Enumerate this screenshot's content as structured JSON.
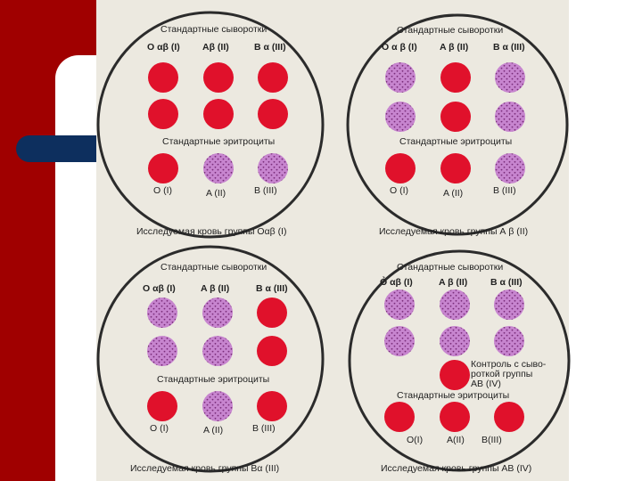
{
  "colors": {
    "agglutinated": "#c785cf",
    "agglutinated_dots": "#7a2d7a",
    "clear": "#e0112b",
    "slide_border": "#2b2b2b",
    "panel_bg": "#ece9e0",
    "accent_red": "#a00000",
    "accent_blue": "#0d2f5e"
  },
  "quadrants": [
    {
      "id": "q1",
      "sera_title": "Стандартные сыворотки",
      "sera_labels": [
        "О αβ (I)",
        "Aβ (II)",
        "B α (III)"
      ],
      "rows": [
        [
          "clear",
          "clear",
          "clear"
        ],
        [
          "clear",
          "clear",
          "clear"
        ]
      ],
      "erythro_title": "Стандартные эритроциты",
      "erythro_row": [
        "clear",
        "agg",
        "agg"
      ],
      "erythro_labels": [
        "O (I)",
        "A (II)",
        "B (III)"
      ],
      "caption": "Исследуемая кровь группы Оαβ (I)"
    },
    {
      "id": "q2",
      "sera_title": "Стандартные сыворотки",
      "sera_labels": [
        "O α β (I)",
        "A β (II)",
        "B α (III)"
      ],
      "rows": [
        [
          "agg",
          "clear",
          "agg"
        ],
        [
          "agg",
          "clear",
          "agg"
        ]
      ],
      "erythro_title": "Стандартные эритроциты",
      "erythro_row": [
        "clear",
        "clear",
        "agg"
      ],
      "erythro_labels": [
        "O (I)",
        "A (II)",
        "B (III)"
      ],
      "caption": "Исследуемая кровь группы А β (II)"
    },
    {
      "id": "q3",
      "sera_title": "Стандартные сыворотки",
      "sera_labels": [
        "O αβ (I)",
        "A β (II)",
        "B α (III)"
      ],
      "rows": [
        [
          "agg",
          "agg",
          "clear"
        ],
        [
          "agg",
          "agg",
          "clear"
        ]
      ],
      "erythro_title": "Стандартные эритроциты",
      "erythro_row": [
        "clear",
        "agg",
        "clear"
      ],
      "erythro_labels": [
        "O (I)",
        "A (II)",
        "B (III)"
      ],
      "caption": "Исследуемая кровь группы Вα (III)"
    },
    {
      "id": "q4",
      "sera_title": "Стандартные сыворотки",
      "sera_labels": [
        "Ỏ αβ (I)",
        "A β (II)",
        "B α (III)"
      ],
      "rows": [
        [
          "agg",
          "agg",
          "agg"
        ],
        [
          "agg",
          "agg",
          "agg"
        ]
      ],
      "control_dot": "clear",
      "control_lines": [
        "Контроль с сыво-",
        "роткой группы",
        "AB (IV)"
      ],
      "erythro_title": "Стандартные эритроциты",
      "erythro_row": [
        "clear",
        "clear",
        "clear"
      ],
      "erythro_labels": [
        "O(I)",
        "A(II)",
        "B(III)"
      ],
      "caption": "Исследуемая кровь группы АВ (IV)"
    }
  ]
}
